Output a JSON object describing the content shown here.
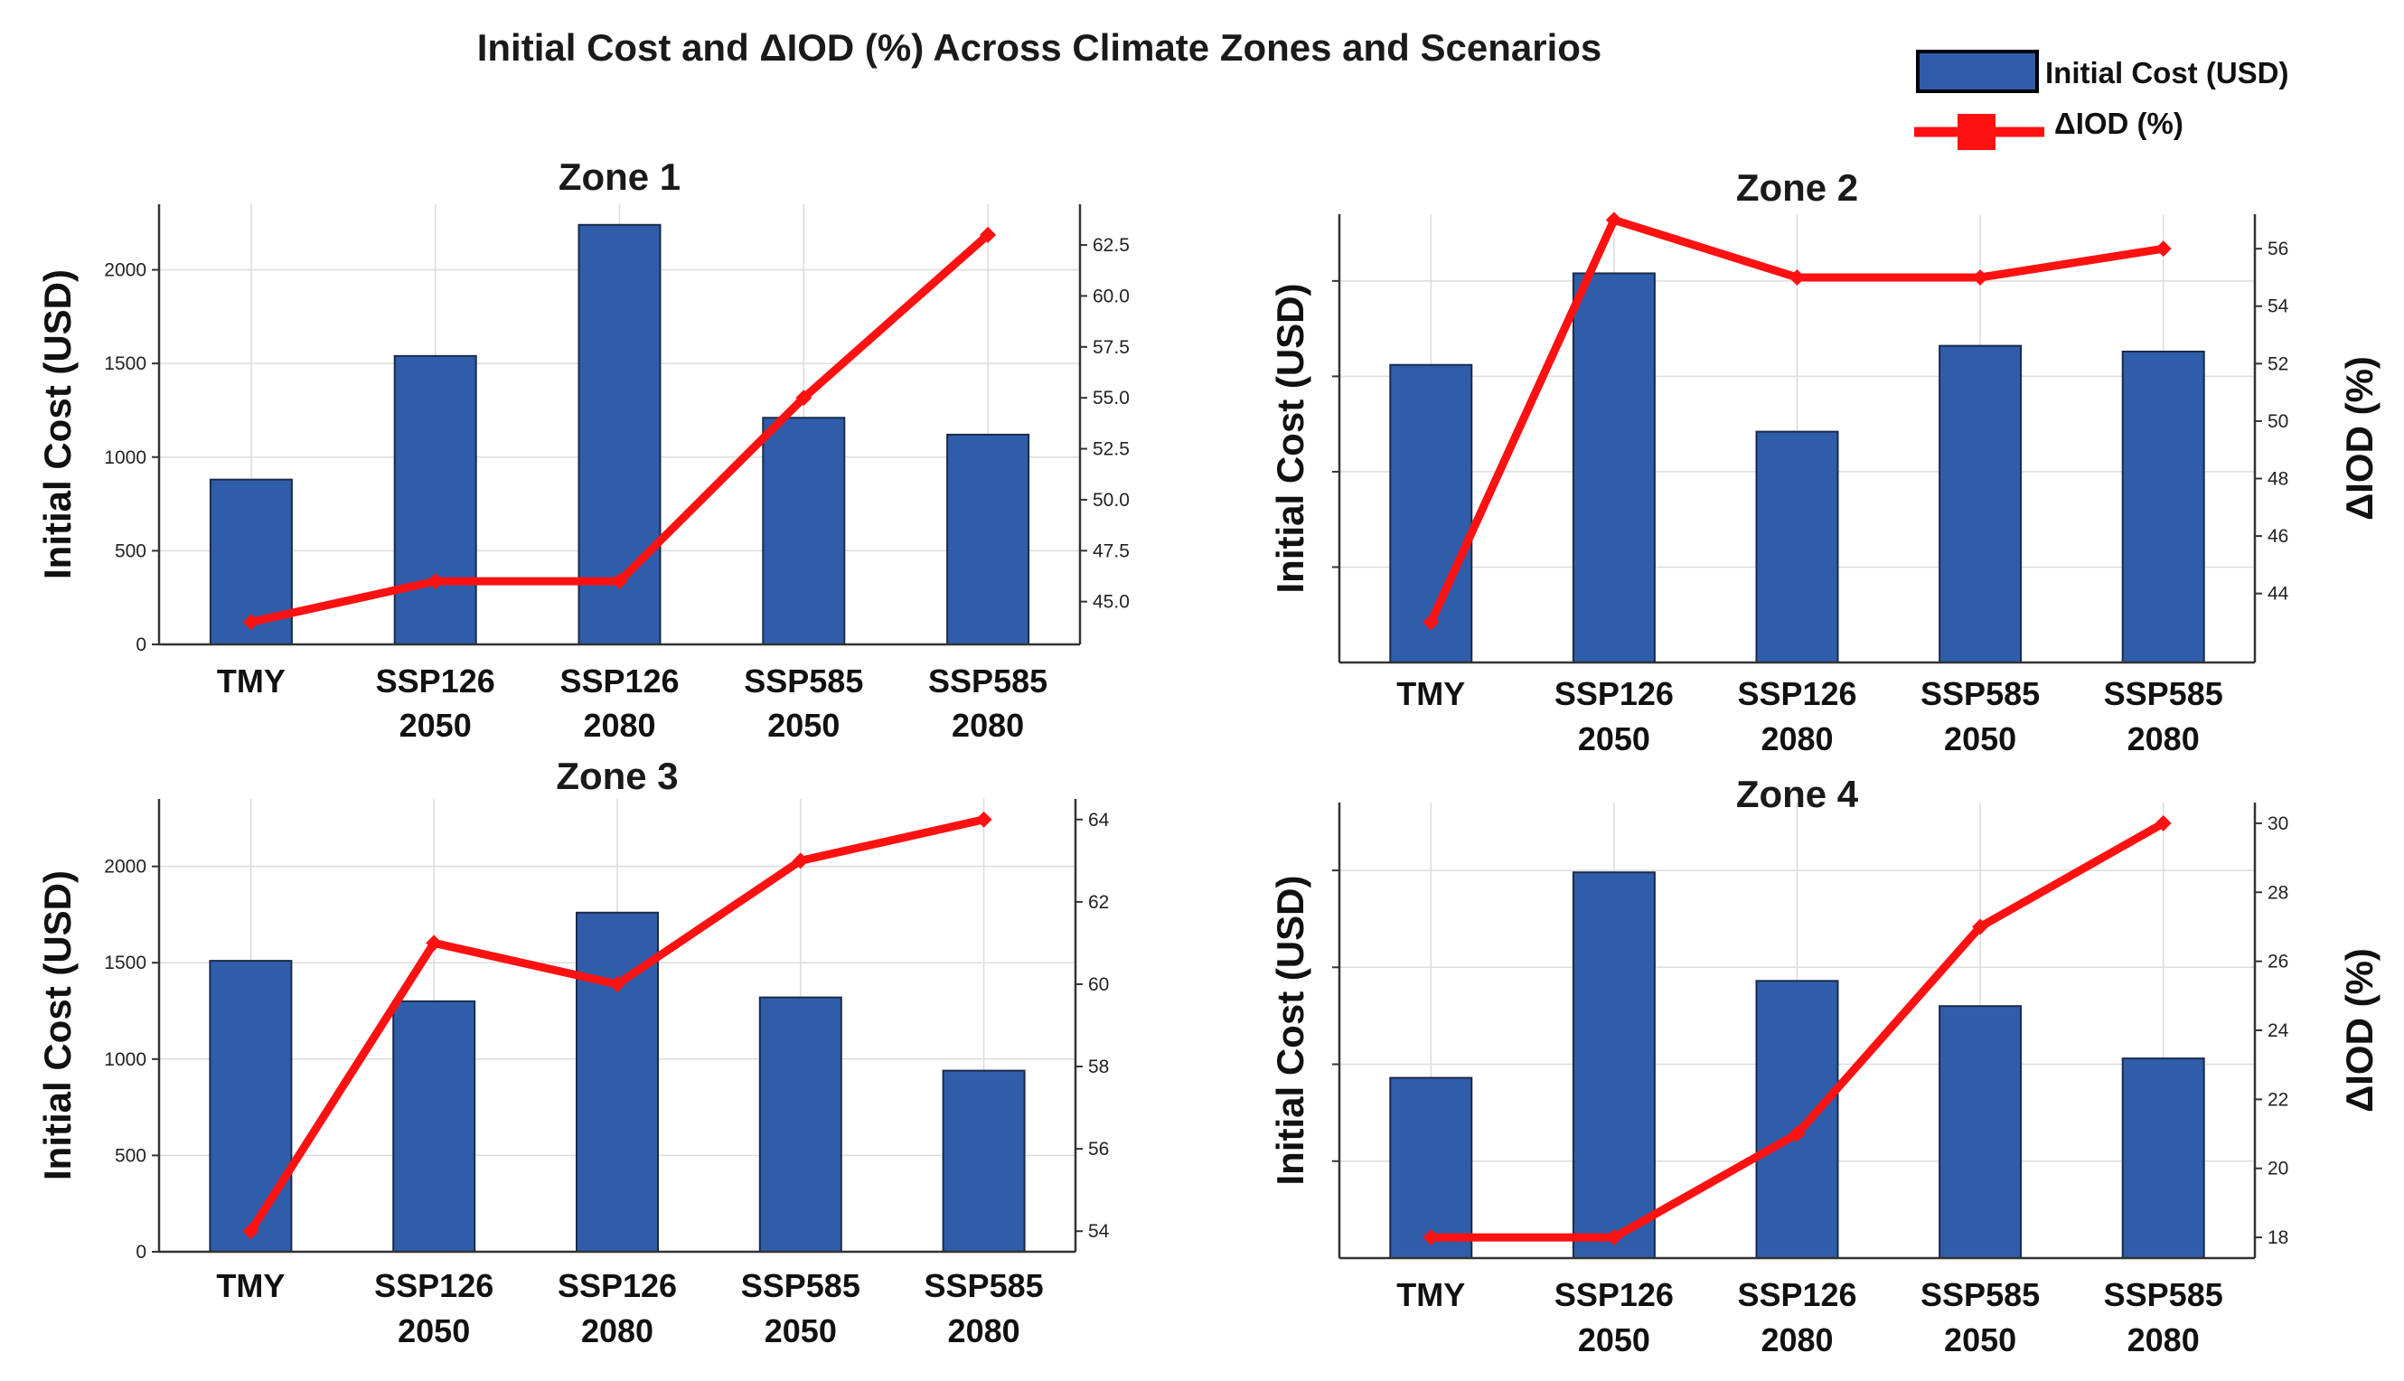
{
  "title": "Initial Cost and ΔIOD (%) Across Climate Zones and Scenarios",
  "legend": {
    "bar_label": "Initial Cost (USD)",
    "line_label": "ΔIOD (%)"
  },
  "colors": {
    "bar": "#2f5daa",
    "line": "#ff1111"
  },
  "chart_data": [
    {
      "type": "bar",
      "title": "Zone 1",
      "categories": [
        [
          "TMY"
        ],
        [
          "SSP126",
          "2050"
        ],
        [
          "SSP126",
          "2080"
        ],
        [
          "SSP585",
          "2050"
        ],
        [
          "SSP585",
          "2080"
        ]
      ],
      "ylabel": "Initial Cost (USD)",
      "ylabel_right": "ΔIOD (%)",
      "show_ylabel_right": false,
      "series": [
        {
          "name": "Initial Cost (USD)",
          "type": "bar",
          "axis": "left",
          "values": [
            880,
            1540,
            2240,
            1210,
            1120
          ]
        },
        {
          "name": "ΔIOD (%)",
          "type": "line",
          "axis": "right",
          "values": [
            44,
            46,
            46,
            55,
            63
          ]
        }
      ],
      "ylim": [
        0,
        2350
      ],
      "yticks": [
        0,
        500,
        1000,
        1500,
        2000
      ],
      "ytick_labels": [
        "0",
        "500",
        "1000",
        "1500",
        "2000"
      ],
      "y2lim": [
        42.9,
        64.5
      ],
      "y2ticks": [
        45,
        47.5,
        50,
        52.5,
        55,
        57.5,
        60,
        62.5
      ],
      "y2tick_labels": [
        "45.0",
        "47.5",
        "50.0",
        "52.5",
        "55.0",
        "57.5",
        "60.0",
        "62.5"
      ],
      "grid": true
    },
    {
      "type": "bar",
      "title": "Zone 2",
      "categories": [
        [
          "TMY"
        ],
        [
          "SSP126",
          "2050"
        ],
        [
          "SSP126",
          "2080"
        ],
        [
          "SSP585",
          "2050"
        ],
        [
          "SSP585",
          "2080"
        ]
      ],
      "ylabel": "Initial Cost (USD)",
      "ylabel_right": "ΔIOD (%)",
      "show_ylabel_right": true,
      "series": [
        {
          "name": "Initial Cost (USD)",
          "type": "bar",
          "axis": "left",
          "values": [
            1560,
            2040,
            1210,
            1660,
            1630
          ]
        },
        {
          "name": "ΔIOD (%)",
          "type": "line",
          "axis": "right",
          "values": [
            43,
            57,
            55,
            55,
            56
          ]
        }
      ],
      "ylim": [
        0,
        2350
      ],
      "yticks": [
        500,
        1000,
        1500,
        2000
      ],
      "ytick_labels": [
        "",
        "",
        "",
        ""
      ],
      "y2lim": [
        41.6,
        57.2
      ],
      "y2ticks": [
        44,
        46,
        48,
        50,
        52,
        54,
        56
      ],
      "y2tick_labels": [
        "44",
        "46",
        "48",
        "50",
        "52",
        "54",
        "56"
      ],
      "grid": true
    },
    {
      "type": "bar",
      "title": "Zone 3",
      "categories": [
        [
          "TMY"
        ],
        [
          "SSP126",
          "2050"
        ],
        [
          "SSP126",
          "2080"
        ],
        [
          "SSP585",
          "2050"
        ],
        [
          "SSP585",
          "2080"
        ]
      ],
      "ylabel": "Initial Cost (USD)",
      "ylabel_right": "ΔIOD (%)",
      "show_ylabel_right": false,
      "series": [
        {
          "name": "Initial Cost (USD)",
          "type": "bar",
          "axis": "left",
          "values": [
            1510,
            1300,
            1760,
            1320,
            940
          ]
        },
        {
          "name": "ΔIOD (%)",
          "type": "line",
          "axis": "right",
          "values": [
            54,
            61,
            60,
            63,
            64
          ]
        }
      ],
      "ylim": [
        0,
        2350
      ],
      "yticks": [
        0,
        500,
        1000,
        1500,
        2000
      ],
      "ytick_labels": [
        "0",
        "500",
        "1000",
        "1500",
        "2000"
      ],
      "y2lim": [
        53.5,
        64.5
      ],
      "y2ticks": [
        54,
        56,
        58,
        60,
        62,
        64
      ],
      "y2tick_labels": [
        "54",
        "56",
        "58",
        "60",
        "62",
        "64"
      ],
      "grid": true
    },
    {
      "type": "bar",
      "title": "Zone 4",
      "categories": [
        [
          "TMY"
        ],
        [
          "SSP126",
          "2050"
        ],
        [
          "SSP126",
          "2080"
        ],
        [
          "SSP585",
          "2050"
        ],
        [
          "SSP585",
          "2080"
        ]
      ],
      "ylabel": "Initial Cost (USD)",
      "ylabel_right": "ΔIOD (%)",
      "show_ylabel_right": true,
      "series": [
        {
          "name": "Initial Cost (USD)",
          "type": "bar",
          "axis": "left",
          "values": [
            930,
            1990,
            1430,
            1300,
            1030
          ]
        },
        {
          "name": "ΔIOD (%)",
          "type": "line",
          "axis": "right",
          "values": [
            18,
            18,
            21,
            27,
            30
          ]
        }
      ],
      "ylim": [
        0,
        2350
      ],
      "yticks": [
        500,
        1000,
        1500,
        2000
      ],
      "ytick_labels": [
        "",
        "",
        "",
        ""
      ],
      "y2lim": [
        17.4,
        30.6
      ],
      "y2ticks": [
        18,
        20,
        22,
        24,
        26,
        28,
        30
      ],
      "y2tick_labels": [
        "18",
        "20",
        "22",
        "24",
        "26",
        "28",
        "30"
      ],
      "grid": true
    }
  ]
}
